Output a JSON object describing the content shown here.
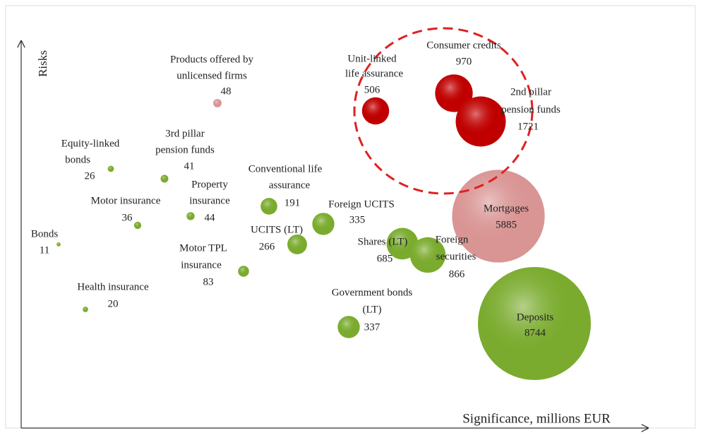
{
  "chart_data": {
    "type": "bubble",
    "y_label": "Risks",
    "x_label": "Significance, millions EUR",
    "points": [
      {
        "label": [
          "Products offered by",
          "unlicensed firms"
        ],
        "value": 48,
        "color": "#d99594"
      },
      {
        "label": [
          "Unit-linked",
          "life assurance"
        ],
        "value": 506,
        "color": "#c00000"
      },
      {
        "label": [
          "Consumer credits"
        ],
        "value": 970,
        "color": "#c00000"
      },
      {
        "label": [
          "2nd pillar",
          "pension funds"
        ],
        "value": 1721,
        "color": "#c00000"
      },
      {
        "label": [
          "Equity-linked",
          "bonds"
        ],
        "value": 26,
        "color": "#7aab2e"
      },
      {
        "label": [
          "3rd pillar",
          "pension funds"
        ],
        "value": 41,
        "color": "#7aab2e"
      },
      {
        "label": [
          "Conventional life",
          "assurance"
        ],
        "value": 191,
        "color": "#7aab2e"
      },
      {
        "label": [
          "Property",
          "insurance"
        ],
        "value": 44,
        "color": "#7aab2e"
      },
      {
        "label": [
          "Motor insurance"
        ],
        "value": 36,
        "color": "#7aab2e"
      },
      {
        "label": [
          "Foreign UCITS"
        ],
        "value": 335,
        "color": "#7aab2e"
      },
      {
        "label": [
          "Mortgages"
        ],
        "value": 5885,
        "color": "#d99594"
      },
      {
        "label": [
          "Bonds"
        ],
        "value": 11,
        "color": "#7aab2e"
      },
      {
        "label": [
          "UCITS (LT)"
        ],
        "value": 266,
        "color": "#7aab2e"
      },
      {
        "label": [
          "Shares (LT)"
        ],
        "value": 685,
        "color": "#7aab2e"
      },
      {
        "label": [
          "Foreign",
          "securities"
        ],
        "value": 866,
        "color": "#7aab2e"
      },
      {
        "label": [
          "Motor TPL",
          "insurance"
        ],
        "value": 83,
        "color": "#7aab2e"
      },
      {
        "label": [
          "Health insurance"
        ],
        "value": 20,
        "color": "#7aab2e"
      },
      {
        "label": [
          "Government bonds",
          "(LT)"
        ],
        "value": 337,
        "color": "#7aab2e"
      },
      {
        "label": [
          "Deposits"
        ],
        "value": 8744,
        "color": "#7aab2e"
      }
    ]
  }
}
